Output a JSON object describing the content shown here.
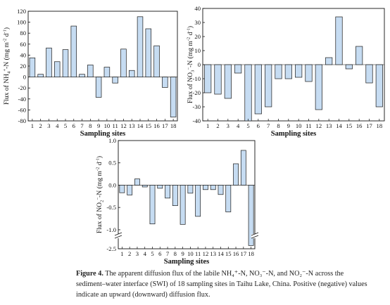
{
  "chart_data": [
    {
      "id": "a",
      "type": "bar",
      "categories": [
        "1",
        "2",
        "3",
        "4",
        "5",
        "6",
        "7",
        "8",
        "9",
        "10",
        "11",
        "12",
        "13",
        "14",
        "15",
        "16",
        "17",
        "18"
      ],
      "values": [
        35,
        5,
        53,
        28,
        50,
        93,
        5,
        22,
        -37,
        18,
        -11,
        51,
        12,
        110,
        88,
        57,
        -19,
        -73
      ],
      "ylim": [
        -80,
        120
      ],
      "yticks": [
        -80,
        -60,
        -40,
        -20,
        0,
        20,
        40,
        60,
        80,
        100,
        120
      ],
      "xlabel": "Sampling sites",
      "ylabel_parts": [
        "Flux of NH",
        "4",
        "+",
        "-N (mg m",
        "-2",
        " d",
        "-1",
        ")"
      ],
      "bar_color": "#c6dcf2",
      "grid": false
    },
    {
      "id": "b",
      "type": "bar",
      "categories": [
        "1",
        "2",
        "3",
        "4",
        "5",
        "6",
        "7",
        "8",
        "9",
        "10",
        "11",
        "12",
        "13",
        "14",
        "15",
        "16",
        "17",
        "18"
      ],
      "values": [
        -20,
        -21,
        -24,
        -6,
        -40,
        -35,
        -30,
        -10,
        -10,
        -9,
        -12,
        -32,
        5,
        34,
        -3,
        13,
        -13,
        -30
      ],
      "ylim": [
        -40,
        40
      ],
      "yticks": [
        -40,
        -30,
        -20,
        -10,
        0,
        10,
        20,
        30,
        40
      ],
      "xlabel": "Sampling sites",
      "ylabel_parts": [
        "Flux of NO",
        "3",
        "−",
        "-N (mg m",
        "-2",
        " d",
        "-1",
        ")"
      ],
      "bar_color": "#c6dcf2",
      "grid": false
    },
    {
      "id": "c",
      "type": "bar",
      "categories": [
        "1",
        "2",
        "3",
        "4",
        "5",
        "6",
        "7",
        "8",
        "9",
        "10",
        "11",
        "12",
        "13",
        "14",
        "15",
        "16",
        "17",
        "18"
      ],
      "values": [
        -0.17,
        -0.22,
        0.14,
        -0.04,
        -0.87,
        -0.07,
        -0.29,
        -0.46,
        -0.88,
        -0.18,
        -0.7,
        -0.1,
        -0.1,
        -0.21,
        -0.6,
        0.48,
        0.78,
        -2.2
      ],
      "ylim": [
        -2.5,
        1.0
      ],
      "yticks": [
        -2.5,
        -1.0,
        -0.5,
        0.0,
        0.5,
        1.0
      ],
      "axis_break": [
        -1.08,
        -2.5
      ],
      "xlabel": "Sampling sites",
      "ylabel_parts": [
        "Flux of NO",
        "2",
        "−",
        "-N (mg m",
        "-2",
        " d",
        "-1",
        ")"
      ],
      "bar_color": "#c6dcf2",
      "grid": false
    }
  ],
  "caption": {
    "label": "Figure 4.",
    "line1": " The apparent diffusion flux of the labile NH₄⁺-N, NO₃⁻-N, and NO₂⁻-N across the",
    "line2": "sediment–water interface (SWI) of 18 sampling sites in Taihu Lake, China. Positive (negative) values",
    "line3": "indicate an upward (downward) diffusion flux."
  }
}
